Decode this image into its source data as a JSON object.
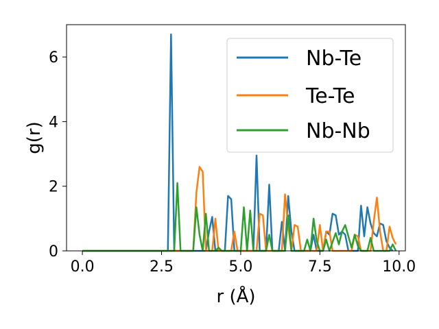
{
  "chart_data": {
    "type": "line",
    "title": "",
    "xlabel": "r (Å)",
    "ylabel": "g(r)",
    "xlim": [
      -0.5,
      10.2
    ],
    "ylim": [
      0,
      7.0
    ],
    "xticks": [
      0.0,
      2.5,
      5.0,
      7.5,
      10.0
    ],
    "xtick_labels": [
      "0.0",
      "2.5",
      "5.0",
      "7.5",
      "10.0"
    ],
    "yticks": [
      0,
      2,
      4,
      6
    ],
    "ytick_labels": [
      "0",
      "2",
      "4",
      "6"
    ],
    "grid": false,
    "legend_position": "top-right",
    "series": [
      {
        "name": "Nb-Te",
        "color": "#1f77b4",
        "points": [
          [
            0,
            0
          ],
          [
            2.7,
            0
          ],
          [
            2.8,
            6.7
          ],
          [
            2.9,
            0
          ],
          [
            3.9,
            0
          ],
          [
            4.0,
            0.6
          ],
          [
            4.1,
            1.05
          ],
          [
            4.2,
            0
          ],
          [
            4.5,
            0
          ],
          [
            4.6,
            1.7
          ],
          [
            4.7,
            1.6
          ],
          [
            4.8,
            0
          ],
          [
            5.4,
            0
          ],
          [
            5.5,
            2.95
          ],
          [
            5.6,
            0
          ],
          [
            5.8,
            0
          ],
          [
            5.9,
            2.05
          ],
          [
            6.0,
            0
          ],
          [
            6.2,
            0
          ],
          [
            6.3,
            0.9
          ],
          [
            6.4,
            0
          ],
          [
            6.5,
            1.7
          ],
          [
            6.6,
            0.6
          ],
          [
            6.7,
            0
          ],
          [
            7.2,
            0
          ],
          [
            7.3,
            0.5
          ],
          [
            7.4,
            0
          ],
          [
            7.6,
            0
          ],
          [
            7.7,
            0.6
          ],
          [
            7.8,
            0.5
          ],
          [
            7.9,
            1.15
          ],
          [
            8.0,
            1.1
          ],
          [
            8.1,
            0.5
          ],
          [
            8.2,
            0.6
          ],
          [
            8.3,
            0.5
          ],
          [
            8.4,
            0
          ],
          [
            8.7,
            0
          ],
          [
            8.8,
            1.4
          ],
          [
            8.9,
            0.45
          ],
          [
            9.0,
            1.35
          ],
          [
            9.1,
            0.85
          ],
          [
            9.2,
            0.55
          ],
          [
            9.3,
            0.45
          ],
          [
            9.4,
            0.85
          ],
          [
            9.5,
            0.8
          ],
          [
            9.6,
            0.3
          ],
          [
            9.7,
            0.1
          ],
          [
            9.8,
            0
          ]
        ]
      },
      {
        "name": "Te-Te",
        "color": "#ff7f0e",
        "points": [
          [
            0,
            0
          ],
          [
            3.5,
            0
          ],
          [
            3.6,
            1.8
          ],
          [
            3.7,
            2.6
          ],
          [
            3.8,
            2.45
          ],
          [
            3.9,
            0
          ],
          [
            4.1,
            0
          ],
          [
            4.2,
            1.0
          ],
          [
            4.3,
            0
          ],
          [
            4.7,
            0
          ],
          [
            4.8,
            0.6
          ],
          [
            4.9,
            0
          ],
          [
            5.5,
            0
          ],
          [
            5.6,
            1.15
          ],
          [
            5.7,
            1.1
          ],
          [
            5.8,
            0
          ],
          [
            6.3,
            0
          ],
          [
            6.4,
            1.75
          ],
          [
            6.5,
            0.75
          ],
          [
            6.6,
            0
          ],
          [
            6.7,
            0.8
          ],
          [
            6.8,
            0.75
          ],
          [
            6.9,
            0
          ],
          [
            7.4,
            0
          ],
          [
            7.5,
            0.8
          ],
          [
            7.6,
            0
          ],
          [
            7.7,
            0.6
          ],
          [
            7.8,
            0.6
          ],
          [
            7.9,
            0
          ],
          [
            8.5,
            0
          ],
          [
            8.6,
            0.5
          ],
          [
            8.7,
            0.45
          ],
          [
            8.8,
            0
          ],
          [
            9.1,
            0
          ],
          [
            9.2,
            0.9
          ],
          [
            9.3,
            1.65
          ],
          [
            9.4,
            0.6
          ],
          [
            9.5,
            0
          ],
          [
            9.6,
            0
          ],
          [
            9.7,
            0.75
          ],
          [
            9.8,
            0.4
          ],
          [
            9.9,
            0.2
          ]
        ]
      },
      {
        "name": "Nb-Nb",
        "color": "#2ca02c",
        "points": [
          [
            0,
            0
          ],
          [
            2.9,
            0
          ],
          [
            3.0,
            2.1
          ],
          [
            3.1,
            0
          ],
          [
            3.5,
            0
          ],
          [
            3.6,
            1.35
          ],
          [
            3.7,
            0.5
          ],
          [
            3.8,
            0
          ],
          [
            3.9,
            1.15
          ],
          [
            4.0,
            0
          ],
          [
            4.2,
            0
          ],
          [
            4.3,
            0.1
          ],
          [
            4.4,
            0
          ],
          [
            5.0,
            0
          ],
          [
            5.1,
            1.35
          ],
          [
            5.2,
            0
          ],
          [
            5.3,
            1.25
          ],
          [
            5.4,
            0
          ],
          [
            5.8,
            0
          ],
          [
            5.9,
            0.5
          ],
          [
            6.0,
            0
          ],
          [
            6.4,
            0
          ],
          [
            6.5,
            1.1
          ],
          [
            6.6,
            0
          ],
          [
            7.0,
            0
          ],
          [
            7.1,
            0.35
          ],
          [
            7.2,
            0
          ],
          [
            7.3,
            1.0
          ],
          [
            7.4,
            0.3
          ],
          [
            7.5,
            0
          ],
          [
            7.6,
            0
          ],
          [
            7.7,
            0.35
          ],
          [
            7.8,
            0
          ],
          [
            8.0,
            0.55
          ],
          [
            8.1,
            0.2
          ],
          [
            8.2,
            0.6
          ],
          [
            8.3,
            0.8
          ],
          [
            8.4,
            0.45
          ],
          [
            8.5,
            0.1
          ],
          [
            8.6,
            0.5
          ],
          [
            8.7,
            0.15
          ],
          [
            8.8,
            0
          ],
          [
            9.0,
            0
          ],
          [
            9.1,
            0.4
          ],
          [
            9.2,
            0
          ],
          [
            9.7,
            0
          ],
          [
            9.8,
            0.2
          ],
          [
            9.9,
            0
          ]
        ]
      }
    ]
  }
}
